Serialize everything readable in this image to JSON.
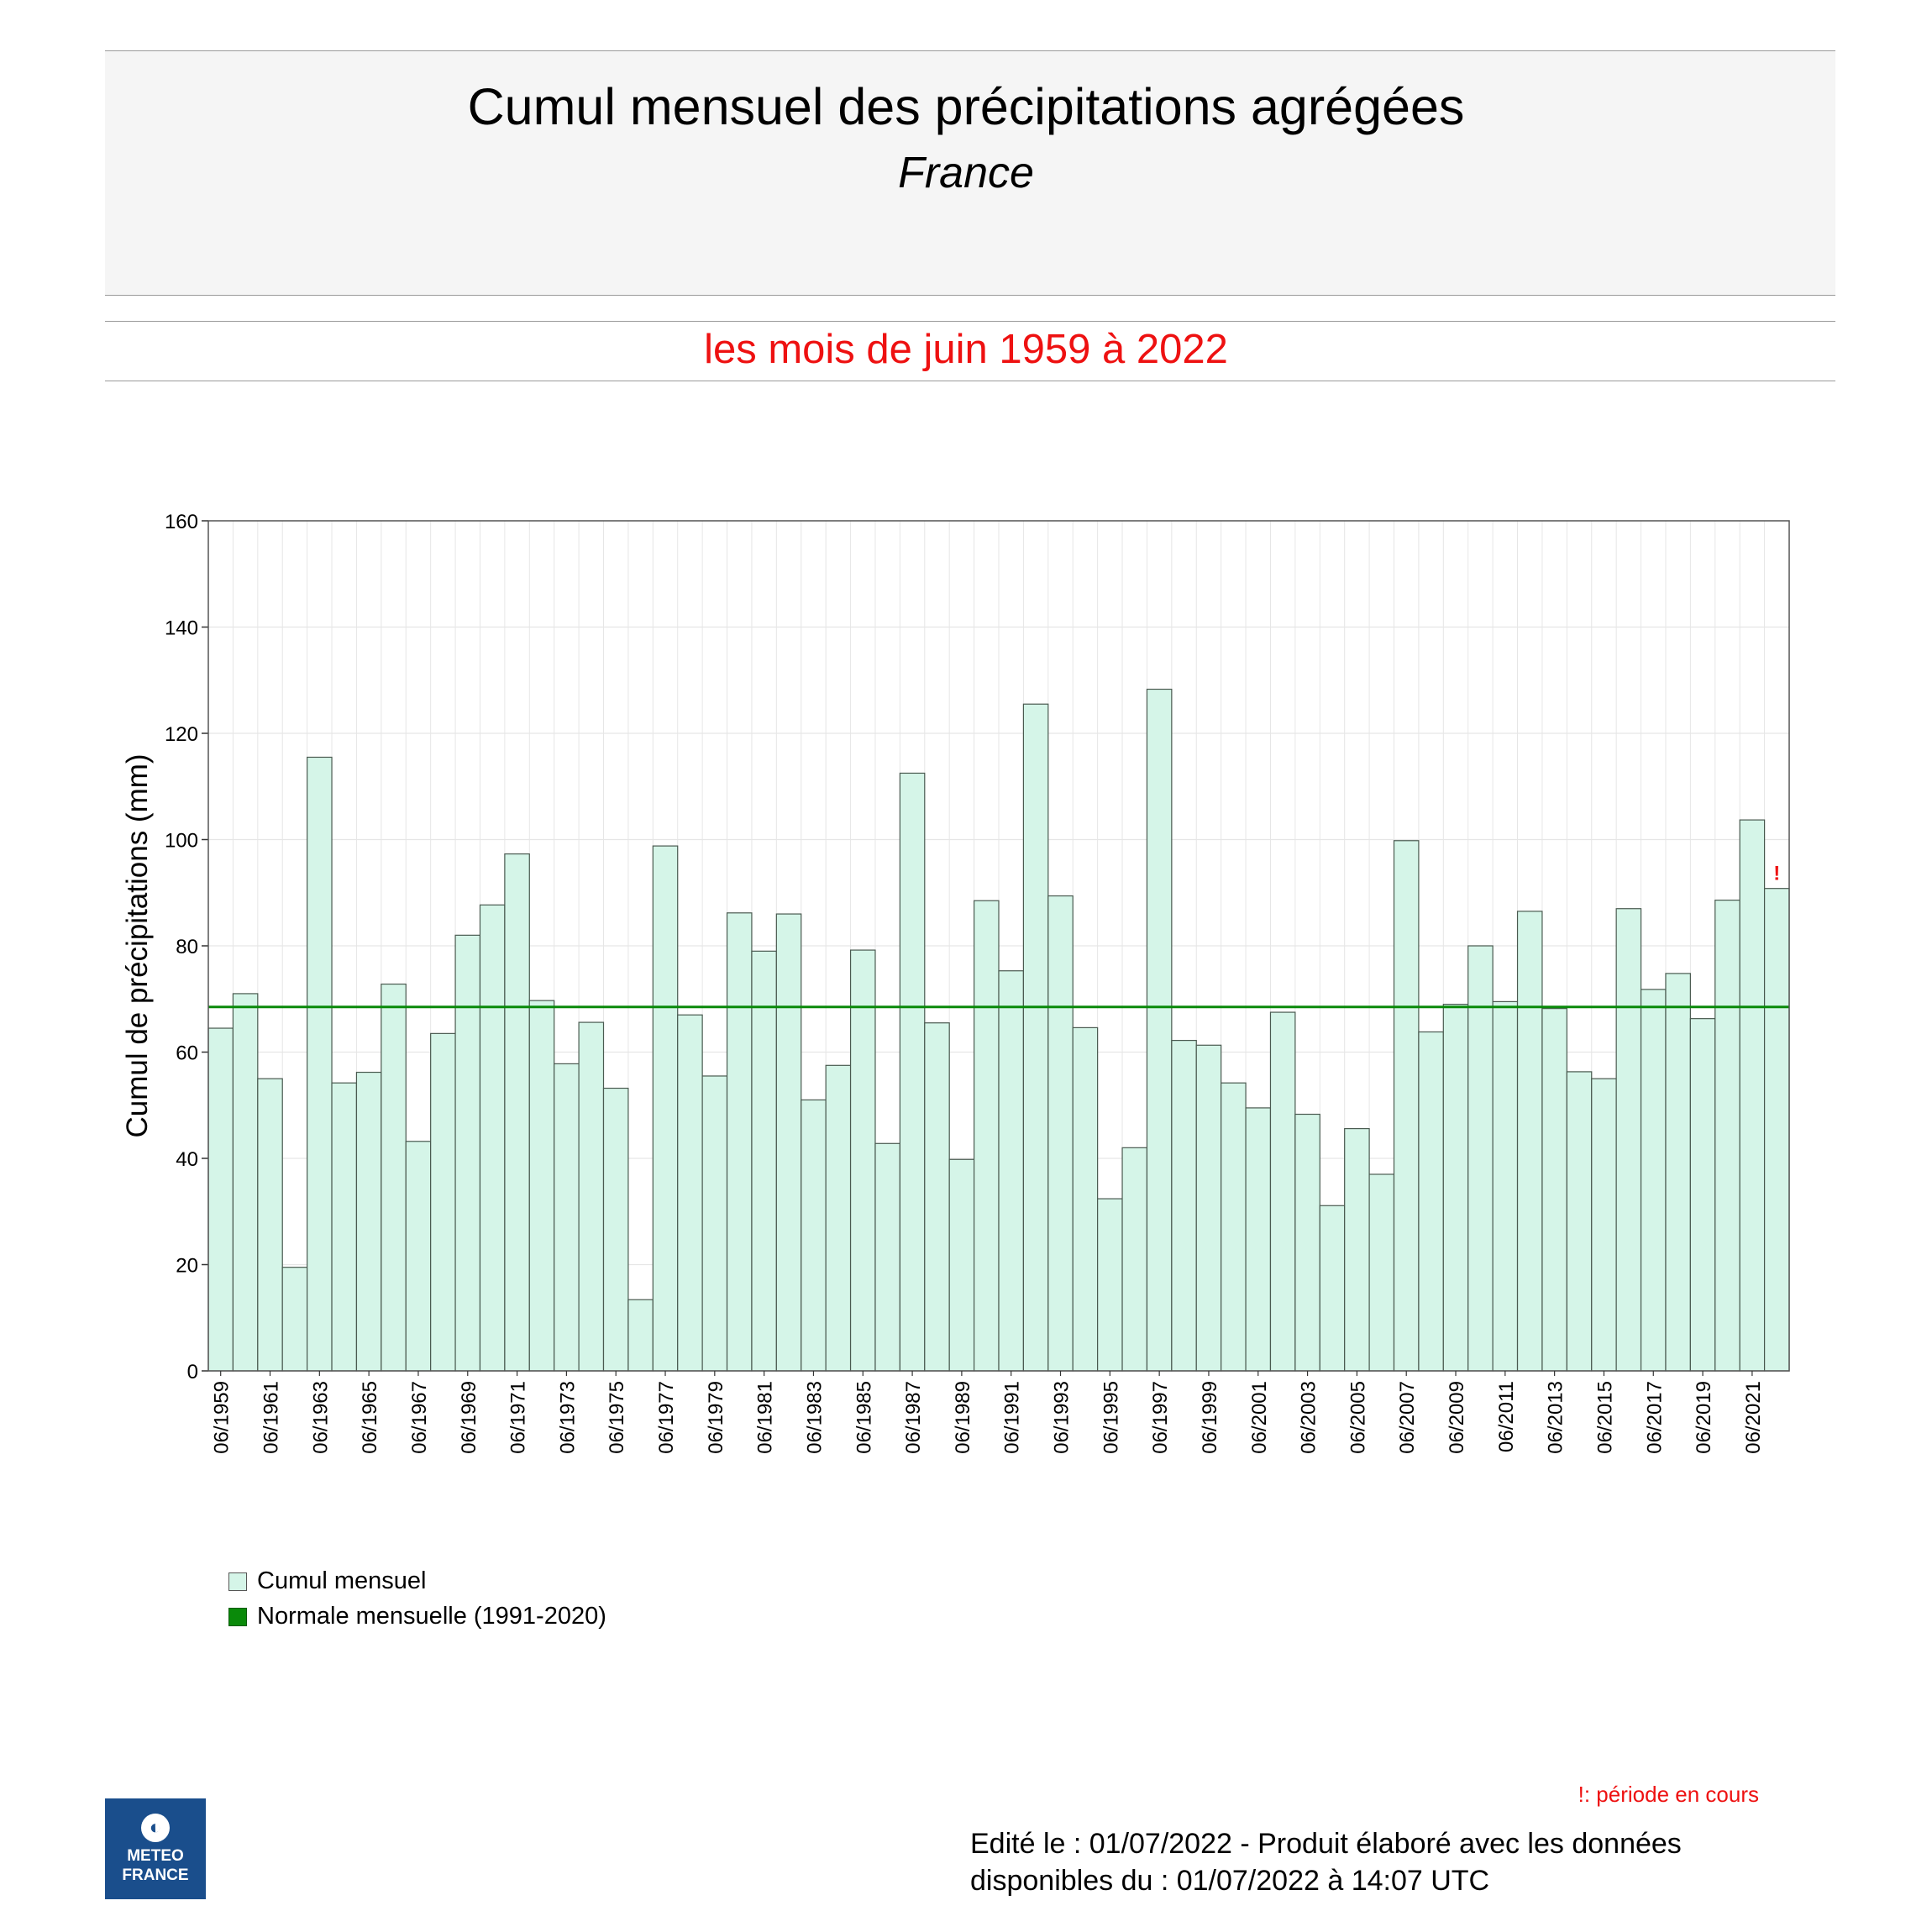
{
  "title": "Cumul mensuel des précipitations agrégées",
  "subtitle": "France",
  "period": "les mois de juin 1959 à 2022",
  "legend": [
    {
      "label": "Cumul mensuel",
      "color": "#d5f5e8"
    },
    {
      "label": "Normale mensuelle (1991-2020)",
      "color": "#0a8a0a"
    }
  ],
  "note": "!: période en cours",
  "edit_line1": "Edité le : 01/07/2022 - Produit élaboré avec les données",
  "edit_line2": "disponibles du : 01/07/2022 à 14:07 UTC",
  "logo": {
    "line1": "METEO",
    "line2": "FRANCE",
    "icon": "meteo-france-logo-icon"
  },
  "chart_data": {
    "type": "bar",
    "ylabel": "Cumul de précipitations (mm)",
    "xlabel": "",
    "ylim": [
      0,
      160
    ],
    "yticks": [
      0,
      20,
      40,
      60,
      80,
      100,
      120,
      140,
      160
    ],
    "grid": true,
    "categories": [
      "06/1959",
      "06/1960",
      "06/1961",
      "06/1962",
      "06/1963",
      "06/1964",
      "06/1965",
      "06/1966",
      "06/1967",
      "06/1968",
      "06/1969",
      "06/1970",
      "06/1971",
      "06/1972",
      "06/1973",
      "06/1974",
      "06/1975",
      "06/1976",
      "06/1977",
      "06/1978",
      "06/1979",
      "06/1980",
      "06/1981",
      "06/1982",
      "06/1983",
      "06/1984",
      "06/1985",
      "06/1986",
      "06/1987",
      "06/1988",
      "06/1989",
      "06/1990",
      "06/1991",
      "06/1992",
      "06/1993",
      "06/1994",
      "06/1995",
      "06/1996",
      "06/1997",
      "06/1998",
      "06/1999",
      "06/2000",
      "06/2001",
      "06/2002",
      "06/2003",
      "06/2004",
      "06/2005",
      "06/2006",
      "06/2007",
      "06/2008",
      "06/2009",
      "06/2010",
      "06/2011",
      "06/2012",
      "06/2013",
      "06/2014",
      "06/2015",
      "06/2016",
      "06/2017",
      "06/2018",
      "06/2019",
      "06/2020",
      "06/2021",
      "06/2022"
    ],
    "tick_labels": [
      "06/1959",
      "06/1961",
      "06/1963",
      "06/1965",
      "06/1967",
      "06/1969",
      "06/1971",
      "06/1973",
      "06/1975",
      "06/1977",
      "06/1979",
      "06/1981",
      "06/1983",
      "06/1985",
      "06/1987",
      "06/1989",
      "06/1991",
      "06/1993",
      "06/1995",
      "06/1997",
      "06/1999",
      "06/2001",
      "06/2003",
      "06/2005",
      "06/2007",
      "06/2009",
      "06/2011",
      "06/2013",
      "06/2015",
      "06/2017",
      "06/2019",
      "06/2021"
    ],
    "series": [
      {
        "name": "Cumul mensuel",
        "color": "#d5f5e8",
        "values": [
          64.5,
          71,
          55,
          19.5,
          115.5,
          54.2,
          56.2,
          72.8,
          43.2,
          63.5,
          82,
          87.7,
          97.3,
          69.7,
          57.8,
          65.6,
          53.2,
          13.4,
          98.8,
          67,
          55.5,
          86.2,
          79,
          86,
          51,
          57.5,
          79.2,
          42.8,
          112.5,
          65.5,
          39.8,
          88.5,
          75.3,
          125.5,
          89.4,
          64.6,
          32.4,
          42,
          128.3,
          62.2,
          61.3,
          54.2,
          49.5,
          67.5,
          48.3,
          31.1,
          45.6,
          37,
          99.8,
          63.8,
          69,
          80,
          69.5,
          86.5,
          68.2,
          56.3,
          55,
          87,
          71.8,
          74.8,
          66.3,
          88.6,
          103.7,
          90.8
        ]
      },
      {
        "name": "Normale mensuelle (1991-2020)",
        "color": "#0a8a0a",
        "value": 68.5
      }
    ],
    "annotations": [
      {
        "category": "06/2022",
        "text": "!",
        "color": "#ee1111"
      }
    ]
  }
}
